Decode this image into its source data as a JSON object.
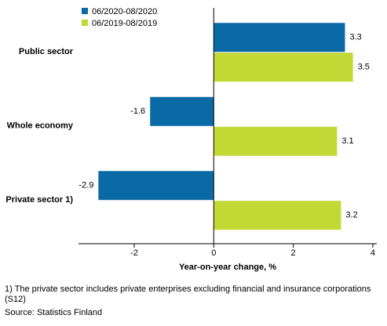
{
  "chart_data": {
    "type": "hbar",
    "categories": [
      "Public sector",
      "Whole economy",
      "Private sector 1)"
    ],
    "series": [
      {
        "name": "06/2020-08/2020",
        "color": "#0a6aa6",
        "values": [
          3.3,
          -1.6,
          -2.9
        ]
      },
      {
        "name": "06/2019-08/2019",
        "color": "#c2d834",
        "values": [
          3.5,
          3.1,
          3.2
        ]
      }
    ],
    "xlim": [
      -3.4,
      4.1
    ],
    "xticks": [
      -2,
      0,
      2,
      4
    ],
    "xlabel": "Year-on-year change, %",
    "footnote": "1) The private sector includes private enterprises excluding financial and insurance corporations (S12)",
    "source": "Source: Statistics Finland"
  }
}
